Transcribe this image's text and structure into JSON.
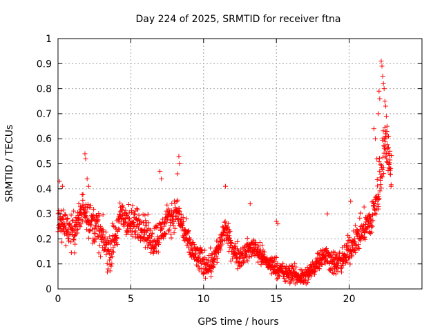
{
  "chart_data": {
    "type": "scatter",
    "title": "Day 224 of 2025, SRMTID for receiver ftna",
    "xlabel": "GPS time / hours",
    "ylabel": "SRMTID / TECUs",
    "xlim": [
      0,
      25
    ],
    "ylim": [
      0,
      1
    ],
    "xticks": [
      0,
      5,
      10,
      15,
      20
    ],
    "yticks": [
      0,
      0.1,
      0.2,
      0.3,
      0.4,
      0.5,
      0.6,
      0.7,
      0.8,
      0.9,
      1
    ],
    "x_tick_labels": [
      "0",
      "5",
      "10",
      "15",
      "20"
    ],
    "y_tick_labels": [
      "0",
      "0.1",
      "0.2",
      "0.3",
      "0.4",
      "0.5",
      "0.6",
      "0.7",
      "0.8",
      "0.9",
      "1"
    ],
    "grid": true,
    "marker": "+",
    "series": [
      {
        "name": "SRMTID",
        "color": "#ff0000",
        "trend": [
          [
            0.0,
            0.27
          ],
          [
            0.5,
            0.26
          ],
          [
            1.0,
            0.22
          ],
          [
            1.5,
            0.28
          ],
          [
            1.8,
            0.34
          ],
          [
            2.2,
            0.27
          ],
          [
            2.7,
            0.24
          ],
          [
            3.2,
            0.18
          ],
          [
            3.5,
            0.14
          ],
          [
            4.0,
            0.22
          ],
          [
            4.4,
            0.3
          ],
          [
            5.0,
            0.25
          ],
          [
            5.5,
            0.27
          ],
          [
            6.0,
            0.23
          ],
          [
            6.5,
            0.19
          ],
          [
            7.0,
            0.22
          ],
          [
            7.5,
            0.27
          ],
          [
            8.2,
            0.31
          ],
          [
            8.6,
            0.24
          ],
          [
            9.0,
            0.17
          ],
          [
            9.5,
            0.13
          ],
          [
            10.0,
            0.1
          ],
          [
            10.5,
            0.1
          ],
          [
            11.0,
            0.16
          ],
          [
            11.5,
            0.24
          ],
          [
            12.0,
            0.15
          ],
          [
            12.5,
            0.13
          ],
          [
            13.0,
            0.15
          ],
          [
            13.5,
            0.17
          ],
          [
            14.0,
            0.13
          ],
          [
            14.5,
            0.1
          ],
          [
            15.0,
            0.09
          ],
          [
            15.5,
            0.06
          ],
          [
            16.0,
            0.06
          ],
          [
            16.5,
            0.05
          ],
          [
            17.0,
            0.05
          ],
          [
            17.5,
            0.08
          ],
          [
            18.0,
            0.13
          ],
          [
            18.5,
            0.13
          ],
          [
            19.0,
            0.1
          ],
          [
            19.5,
            0.11
          ],
          [
            20.0,
            0.16
          ],
          [
            20.5,
            0.2
          ],
          [
            21.0,
            0.24
          ],
          [
            21.5,
            0.27
          ],
          [
            22.0,
            0.38
          ],
          [
            22.3,
            0.55
          ],
          [
            22.6,
            0.58
          ],
          [
            22.9,
            0.45
          ]
        ],
        "spread": [
          [
            0.0,
            0.07
          ],
          [
            3.0,
            0.08
          ],
          [
            9.0,
            0.06
          ],
          [
            14.5,
            0.04
          ],
          [
            17.5,
            0.04
          ],
          [
            20.0,
            0.06
          ],
          [
            21.5,
            0.07
          ],
          [
            22.3,
            0.12
          ],
          [
            22.9,
            0.08
          ]
        ],
        "outliers": [
          [
            0.1,
            0.43
          ],
          [
            0.3,
            0.41
          ],
          [
            1.85,
            0.54
          ],
          [
            1.9,
            0.52
          ],
          [
            2.0,
            0.44
          ],
          [
            2.1,
            0.41
          ],
          [
            7.0,
            0.47
          ],
          [
            7.1,
            0.44
          ],
          [
            8.3,
            0.53
          ],
          [
            8.35,
            0.5
          ],
          [
            8.2,
            0.46
          ],
          [
            11.5,
            0.41
          ],
          [
            13.2,
            0.34
          ],
          [
            15.0,
            0.27
          ],
          [
            15.1,
            0.26
          ],
          [
            18.5,
            0.3
          ],
          [
            20.1,
            0.35
          ],
          [
            21.7,
            0.64
          ],
          [
            21.8,
            0.6
          ],
          [
            22.0,
            0.7
          ],
          [
            22.05,
            0.79
          ],
          [
            22.1,
            0.76
          ],
          [
            22.2,
            0.91
          ],
          [
            22.25,
            0.89
          ],
          [
            22.3,
            0.85
          ],
          [
            22.35,
            0.82
          ],
          [
            22.4,
            0.8
          ],
          [
            22.45,
            0.75
          ],
          [
            22.5,
            0.73
          ],
          [
            22.55,
            0.69
          ],
          [
            22.6,
            0.65
          ],
          [
            22.7,
            0.61
          ],
          [
            22.8,
            0.55
          ],
          [
            22.5,
            0.62
          ],
          [
            22.4,
            0.57
          ],
          [
            21.9,
            0.52
          ]
        ]
      }
    ]
  }
}
